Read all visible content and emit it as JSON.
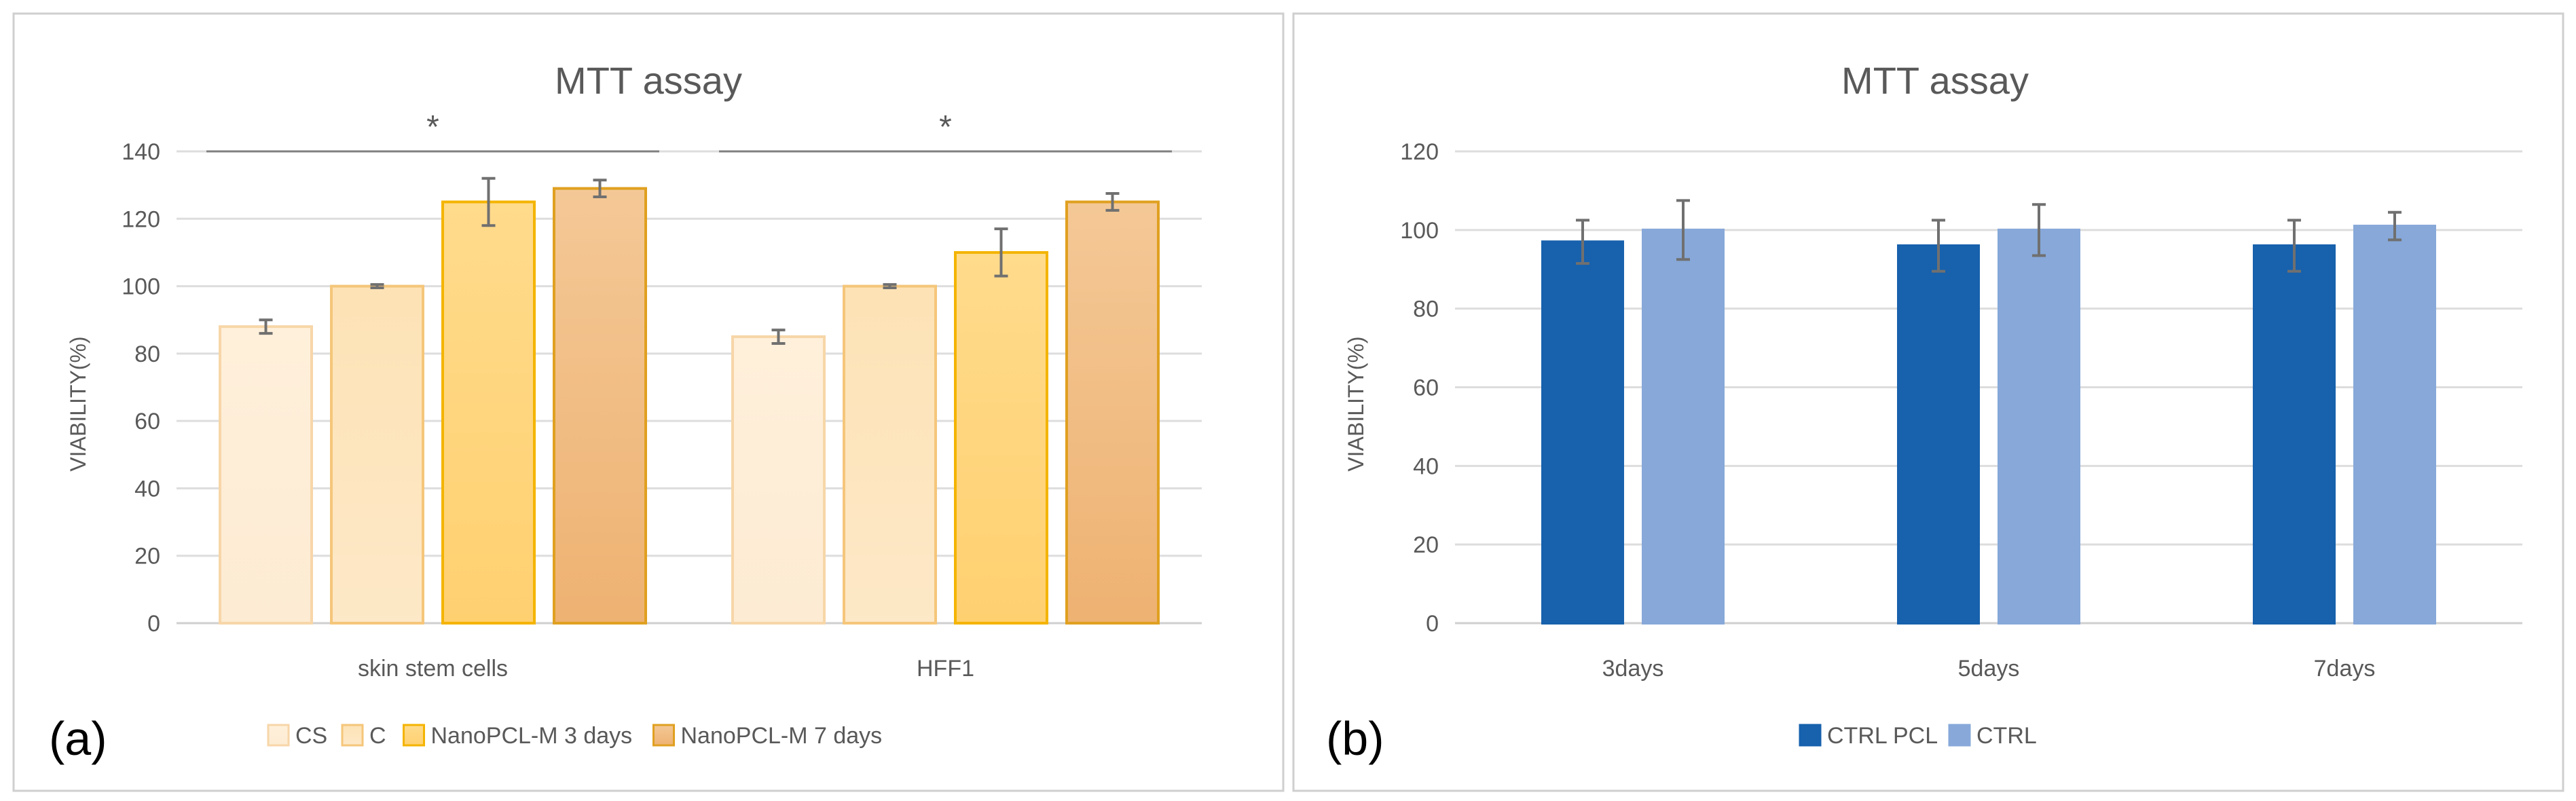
{
  "chart_data": [
    {
      "type": "bar",
      "panel_label": "(a)",
      "title": "MTT assay",
      "xlabel": "",
      "ylabel": "VIABILITY(%)",
      "ylim": [
        0,
        140
      ],
      "yticks": [
        0,
        20,
        40,
        60,
        80,
        100,
        120,
        140
      ],
      "ytick_labels": [
        "0",
        "20",
        "40",
        "60",
        "80",
        "100",
        "120",
        "140"
      ],
      "grid": true,
      "legend_position": "bottom",
      "categories": [
        "skin stem cells",
        "HFF1"
      ],
      "significance": [
        {
          "group": "skin stem cells",
          "symbol": "*"
        },
        {
          "group": "HFF1",
          "symbol": "*"
        }
      ],
      "series": [
        {
          "name": "CS",
          "values": [
            88,
            85
          ],
          "errors": [
            2,
            2
          ],
          "fill_top": "#fff0db",
          "fill_bottom": "#fdebd3",
          "stroke": "#f7d6a8"
        },
        {
          "name": "C",
          "values": [
            100,
            100
          ],
          "errors": [
            0.5,
            0.5
          ],
          "fill_top": "#fde2b5",
          "fill_bottom": "#fde8c7",
          "stroke": "#f5c67a"
        },
        {
          "name": "NanoPCL-M 3 days",
          "values": [
            125,
            110
          ],
          "errors": [
            7,
            7
          ],
          "fill_top": "#ffdb8c",
          "fill_bottom": "#ffd070",
          "stroke": "#f4b400"
        },
        {
          "name": "NanoPCL-M 7 days",
          "values": [
            129,
            125
          ],
          "errors": [
            2.5,
            2.5
          ],
          "fill_top": "#f4c896",
          "fill_bottom": "#eeb272",
          "stroke": "#e0a020"
        }
      ]
    },
    {
      "type": "bar",
      "panel_label": "(b)",
      "title": "MTT assay",
      "xlabel": "",
      "ylabel": "VIABILITY(%)",
      "ylim": [
        0,
        120
      ],
      "yticks": [
        0,
        20,
        40,
        60,
        80,
        100,
        120
      ],
      "ytick_labels": [
        "0",
        "20",
        "40",
        "60",
        "80",
        "100",
        "120"
      ],
      "grid": true,
      "legend_position": "bottom",
      "categories": [
        "3days",
        "5days",
        "7days"
      ],
      "series": [
        {
          "name": "CTRL PCL",
          "values": [
            97,
            96,
            96
          ],
          "errors": [
            5.5,
            6.5,
            6.5
          ],
          "fill_top": "#1761ad",
          "fill_bottom": "#1761ad",
          "stroke": "#1761ad"
        },
        {
          "name": "CTRL",
          "values": [
            100,
            100,
            101
          ],
          "errors": [
            7.5,
            6.5,
            3.5
          ],
          "fill_top": "#87a8d9",
          "fill_bottom": "#87a8d9",
          "stroke": "#87a8d9"
        }
      ]
    }
  ],
  "colors": {
    "panel_border": "#cfcfcf",
    "gridline": "#dddddd",
    "axis_text": "#595959",
    "title_text": "#595959",
    "error_bar": "#707070",
    "significance_line": "#808080"
  }
}
